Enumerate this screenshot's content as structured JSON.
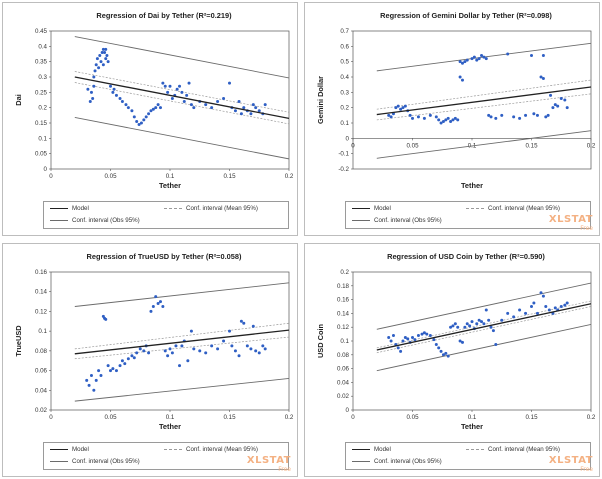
{
  "charts": [
    {
      "type": "scatter",
      "title": "Regression of Dai by Tether (R²=0.219)",
      "xlabel": "Tether",
      "ylabel": "Dai",
      "xlim": [
        0,
        0.2
      ],
      "ylim": [
        0,
        0.45
      ],
      "xticks": [
        "0",
        "0.05",
        "0.1",
        "0.15",
        "0.2"
      ],
      "yticks": [
        "0",
        "0.05",
        "0.1",
        "0.15",
        "0.2",
        "0.25",
        "0.3",
        "0.35",
        "0.4",
        "0.45"
      ],
      "model": [
        0.3,
        0.165
      ],
      "mean_ci_upper": [
        0.318,
        0.185
      ],
      "mean_ci_lower": [
        0.282,
        0.147
      ],
      "obs_ci_upper": [
        0.432,
        0.297
      ],
      "obs_ci_lower": [
        0.168,
        0.033
      ],
      "points": [
        [
          0.031,
          0.26
        ],
        [
          0.033,
          0.22
        ],
        [
          0.034,
          0.25
        ],
        [
          0.035,
          0.23
        ],
        [
          0.036,
          0.27
        ],
        [
          0.036,
          0.3
        ],
        [
          0.037,
          0.32
        ],
        [
          0.038,
          0.34
        ],
        [
          0.039,
          0.36
        ],
        [
          0.04,
          0.33
        ],
        [
          0.041,
          0.37
        ],
        [
          0.042,
          0.35
        ],
        [
          0.043,
          0.38
        ],
        [
          0.044,
          0.39
        ],
        [
          0.045,
          0.38
        ],
        [
          0.046,
          0.39
        ],
        [
          0.047,
          0.37
        ],
        [
          0.048,
          0.35
        ],
        [
          0.046,
          0.36
        ],
        [
          0.044,
          0.34
        ],
        [
          0.05,
          0.27
        ],
        [
          0.052,
          0.25
        ],
        [
          0.053,
          0.26
        ],
        [
          0.055,
          0.24
        ],
        [
          0.058,
          0.23
        ],
        [
          0.06,
          0.22
        ],
        [
          0.063,
          0.21
        ],
        [
          0.065,
          0.2
        ],
        [
          0.068,
          0.19
        ],
        [
          0.07,
          0.17
        ],
        [
          0.072,
          0.155
        ],
        [
          0.074,
          0.145
        ],
        [
          0.076,
          0.15
        ],
        [
          0.078,
          0.16
        ],
        [
          0.08,
          0.17
        ],
        [
          0.082,
          0.18
        ],
        [
          0.084,
          0.19
        ],
        [
          0.086,
          0.195
        ],
        [
          0.088,
          0.2
        ],
        [
          0.09,
          0.21
        ],
        [
          0.092,
          0.2
        ],
        [
          0.094,
          0.28
        ],
        [
          0.096,
          0.27
        ],
        [
          0.098,
          0.25
        ],
        [
          0.1,
          0.27
        ],
        [
          0.102,
          0.23
        ],
        [
          0.104,
          0.24
        ],
        [
          0.106,
          0.26
        ],
        [
          0.108,
          0.27
        ],
        [
          0.11,
          0.25
        ],
        [
          0.112,
          0.22
        ],
        [
          0.114,
          0.24
        ],
        [
          0.116,
          0.28
        ],
        [
          0.118,
          0.21
        ],
        [
          0.12,
          0.2
        ],
        [
          0.125,
          0.22
        ],
        [
          0.13,
          0.21
        ],
        [
          0.135,
          0.2
        ],
        [
          0.14,
          0.22
        ],
        [
          0.145,
          0.23
        ],
        [
          0.15,
          0.28
        ],
        [
          0.152,
          0.2
        ],
        [
          0.155,
          0.19
        ],
        [
          0.158,
          0.22
        ],
        [
          0.16,
          0.18
        ],
        [
          0.162,
          0.2
        ],
        [
          0.165,
          0.19
        ],
        [
          0.168,
          0.18
        ],
        [
          0.17,
          0.21
        ],
        [
          0.172,
          0.2
        ],
        [
          0.175,
          0.19
        ],
        [
          0.178,
          0.18
        ],
        [
          0.18,
          0.21
        ]
      ]
    },
    {
      "type": "scatter",
      "title": "Regression of Gemini Dollar by Tether (R²=0.098)",
      "xlabel": "Tether",
      "ylabel": "Gemini Dollar",
      "xlim": [
        0,
        0.2
      ],
      "ylim": [
        -0.2,
        0.7
      ],
      "xticks": [
        "0",
        "0.05",
        "0.1",
        "0.15",
        "0.2"
      ],
      "yticks": [
        "-0.2",
        "-0.1",
        "0",
        "0.1",
        "0.2",
        "0.3",
        "0.4",
        "0.5",
        "0.6",
        "0.7"
      ],
      "model": [
        0.155,
        0.335
      ],
      "mean_ci_upper": [
        0.19,
        0.38
      ],
      "mean_ci_lower": [
        0.12,
        0.29
      ],
      "obs_ci_upper": [
        0.44,
        0.62
      ],
      "obs_ci_lower": [
        -0.13,
        0.05
      ],
      "points": [
        [
          0.03,
          0.15
        ],
        [
          0.032,
          0.14
        ],
        [
          0.034,
          0.16
        ],
        [
          0.036,
          0.2
        ],
        [
          0.038,
          0.21
        ],
        [
          0.04,
          0.19
        ],
        [
          0.042,
          0.2
        ],
        [
          0.044,
          0.21
        ],
        [
          0.046,
          0.18
        ],
        [
          0.048,
          0.15
        ],
        [
          0.05,
          0.13
        ],
        [
          0.055,
          0.14
        ],
        [
          0.06,
          0.13
        ],
        [
          0.065,
          0.15
        ],
        [
          0.07,
          0.14
        ],
        [
          0.072,
          0.12
        ],
        [
          0.074,
          0.1
        ],
        [
          0.076,
          0.11
        ],
        [
          0.078,
          0.12
        ],
        [
          0.08,
          0.13
        ],
        [
          0.082,
          0.11
        ],
        [
          0.084,
          0.12
        ],
        [
          0.086,
          0.13
        ],
        [
          0.088,
          0.12
        ],
        [
          0.09,
          0.5
        ],
        [
          0.092,
          0.49
        ],
        [
          0.094,
          0.5
        ],
        [
          0.096,
          0.51
        ],
        [
          0.09,
          0.4
        ],
        [
          0.092,
          0.38
        ],
        [
          0.1,
          0.52
        ],
        [
          0.102,
          0.53
        ],
        [
          0.104,
          0.51
        ],
        [
          0.106,
          0.52
        ],
        [
          0.108,
          0.54
        ],
        [
          0.11,
          0.53
        ],
        [
          0.112,
          0.52
        ],
        [
          0.114,
          0.15
        ],
        [
          0.116,
          0.14
        ],
        [
          0.12,
          0.13
        ],
        [
          0.125,
          0.15
        ],
        [
          0.13,
          0.55
        ],
        [
          0.135,
          0.14
        ],
        [
          0.14,
          0.13
        ],
        [
          0.145,
          0.15
        ],
        [
          0.15,
          0.54
        ],
        [
          0.152,
          0.16
        ],
        [
          0.155,
          0.15
        ],
        [
          0.158,
          0.4
        ],
        [
          0.16,
          0.39
        ],
        [
          0.162,
          0.14
        ],
        [
          0.164,
          0.15
        ],
        [
          0.166,
          0.28
        ],
        [
          0.168,
          0.2
        ],
        [
          0.17,
          0.22
        ],
        [
          0.172,
          0.21
        ],
        [
          0.175,
          0.26
        ],
        [
          0.178,
          0.25
        ],
        [
          0.18,
          0.2
        ],
        [
          0.16,
          0.54
        ]
      ]
    },
    {
      "type": "scatter",
      "title": "Regression of TrueUSD by Tether (R²=0.058)",
      "xlabel": "Tether",
      "ylabel": "TrueUSD",
      "xlim": [
        0,
        0.2
      ],
      "ylim": [
        0.02,
        0.16
      ],
      "xticks": [
        "0",
        "0.05",
        "0.1",
        "0.15",
        "0.2"
      ],
      "yticks": [
        "0.02",
        "0.04",
        "0.06",
        "0.08",
        "0.1",
        "0.12",
        "0.14",
        "0.16"
      ],
      "model": [
        0.077,
        0.101
      ],
      "mean_ci_upper": [
        0.082,
        0.108
      ],
      "mean_ci_lower": [
        0.072,
        0.094
      ],
      "obs_ci_upper": [
        0.125,
        0.149
      ],
      "obs_ci_lower": [
        0.029,
        0.052
      ],
      "points": [
        [
          0.03,
          0.05
        ],
        [
          0.032,
          0.045
        ],
        [
          0.034,
          0.055
        ],
        [
          0.036,
          0.04
        ],
        [
          0.038,
          0.05
        ],
        [
          0.04,
          0.06
        ],
        [
          0.042,
          0.055
        ],
        [
          0.044,
          0.115
        ],
        [
          0.045,
          0.113
        ],
        [
          0.046,
          0.112
        ],
        [
          0.048,
          0.065
        ],
        [
          0.05,
          0.06
        ],
        [
          0.052,
          0.062
        ],
        [
          0.055,
          0.06
        ],
        [
          0.058,
          0.065
        ],
        [
          0.06,
          0.07
        ],
        [
          0.062,
          0.067
        ],
        [
          0.065,
          0.072
        ],
        [
          0.068,
          0.075
        ],
        [
          0.07,
          0.073
        ],
        [
          0.072,
          0.078
        ],
        [
          0.075,
          0.082
        ],
        [
          0.078,
          0.08
        ],
        [
          0.08,
          0.085
        ],
        [
          0.082,
          0.078
        ],
        [
          0.084,
          0.12
        ],
        [
          0.086,
          0.125
        ],
        [
          0.088,
          0.135
        ],
        [
          0.09,
          0.128
        ],
        [
          0.092,
          0.13
        ],
        [
          0.094,
          0.125
        ],
        [
          0.096,
          0.08
        ],
        [
          0.098,
          0.075
        ],
        [
          0.1,
          0.082
        ],
        [
          0.102,
          0.078
        ],
        [
          0.105,
          0.085
        ],
        [
          0.108,
          0.065
        ],
        [
          0.11,
          0.085
        ],
        [
          0.112,
          0.09
        ],
        [
          0.115,
          0.07
        ],
        [
          0.118,
          0.1
        ],
        [
          0.12,
          0.082
        ],
        [
          0.125,
          0.08
        ],
        [
          0.13,
          0.078
        ],
        [
          0.135,
          0.085
        ],
        [
          0.14,
          0.082
        ],
        [
          0.145,
          0.09
        ],
        [
          0.15,
          0.1
        ],
        [
          0.152,
          0.085
        ],
        [
          0.155,
          0.08
        ],
        [
          0.158,
          0.075
        ],
        [
          0.16,
          0.11
        ],
        [
          0.162,
          0.108
        ],
        [
          0.165,
          0.085
        ],
        [
          0.168,
          0.082
        ],
        [
          0.17,
          0.105
        ],
        [
          0.172,
          0.08
        ],
        [
          0.175,
          0.078
        ],
        [
          0.178,
          0.085
        ],
        [
          0.18,
          0.082
        ]
      ]
    },
    {
      "type": "scatter",
      "title": "Regression of USD Coin by Tether (R²=0.590)",
      "xlabel": "Tether",
      "ylabel": "USD Coin",
      "xlim": [
        0,
        0.2
      ],
      "ylim": [
        0,
        0.2
      ],
      "xticks": [
        "0",
        "0.05",
        "0.1",
        "0.15",
        "0.2"
      ],
      "yticks": [
        "0",
        "0.02",
        "0.04",
        "0.06",
        "0.08",
        "0.1",
        "0.12",
        "0.14",
        "0.16",
        "0.18",
        "0.2"
      ],
      "model": [
        0.087,
        0.154
      ],
      "mean_ci_upper": [
        0.09,
        0.158
      ],
      "mean_ci_lower": [
        0.083,
        0.15
      ],
      "obs_ci_upper": [
        0.117,
        0.184
      ],
      "obs_ci_lower": [
        0.057,
        0.124
      ],
      "points": [
        [
          0.03,
          0.105
        ],
        [
          0.032,
          0.1
        ],
        [
          0.034,
          0.108
        ],
        [
          0.036,
          0.095
        ],
        [
          0.038,
          0.09
        ],
        [
          0.04,
          0.085
        ],
        [
          0.042,
          0.1
        ],
        [
          0.044,
          0.105
        ],
        [
          0.046,
          0.103
        ],
        [
          0.048,
          0.098
        ],
        [
          0.05,
          0.105
        ],
        [
          0.052,
          0.102
        ],
        [
          0.055,
          0.108
        ],
        [
          0.058,
          0.11
        ],
        [
          0.06,
          0.112
        ],
        [
          0.062,
          0.11
        ],
        [
          0.065,
          0.108
        ],
        [
          0.068,
          0.102
        ],
        [
          0.07,
          0.095
        ],
        [
          0.072,
          0.09
        ],
        [
          0.074,
          0.085
        ],
        [
          0.076,
          0.08
        ],
        [
          0.078,
          0.082
        ],
        [
          0.08,
          0.078
        ],
        [
          0.082,
          0.12
        ],
        [
          0.084,
          0.122
        ],
        [
          0.086,
          0.125
        ],
        [
          0.088,
          0.12
        ],
        [
          0.09,
          0.1
        ],
        [
          0.092,
          0.098
        ],
        [
          0.094,
          0.12
        ],
        [
          0.096,
          0.125
        ],
        [
          0.098,
          0.122
        ],
        [
          0.1,
          0.128
        ],
        [
          0.102,
          0.118
        ],
        [
          0.104,
          0.125
        ],
        [
          0.106,
          0.13
        ],
        [
          0.108,
          0.128
        ],
        [
          0.11,
          0.125
        ],
        [
          0.112,
          0.145
        ],
        [
          0.114,
          0.13
        ],
        [
          0.116,
          0.12
        ],
        [
          0.118,
          0.115
        ],
        [
          0.12,
          0.095
        ],
        [
          0.125,
          0.13
        ],
        [
          0.13,
          0.14
        ],
        [
          0.135,
          0.135
        ],
        [
          0.14,
          0.145
        ],
        [
          0.145,
          0.14
        ],
        [
          0.15,
          0.15
        ],
        [
          0.152,
          0.155
        ],
        [
          0.155,
          0.14
        ],
        [
          0.158,
          0.17
        ],
        [
          0.16,
          0.165
        ],
        [
          0.162,
          0.15
        ],
        [
          0.165,
          0.145
        ],
        [
          0.168,
          0.14
        ],
        [
          0.17,
          0.148
        ],
        [
          0.172,
          0.145
        ],
        [
          0.175,
          0.15
        ],
        [
          0.178,
          0.152
        ],
        [
          0.18,
          0.155
        ]
      ]
    }
  ],
  "legend": {
    "model": "Model",
    "mean_ci": "Conf. interval (Mean 95%)",
    "obs_ci": "Conf. interval (Obs 95%)"
  },
  "watermark": {
    "brand": "XLSTAT",
    "edition": "Free"
  },
  "colors": {
    "point": "#2f5fc4",
    "model": "#222222",
    "mean_ci": "#9a9a9a",
    "obs_ci": "#6b6b6b",
    "watermark": "#f4b183"
  }
}
